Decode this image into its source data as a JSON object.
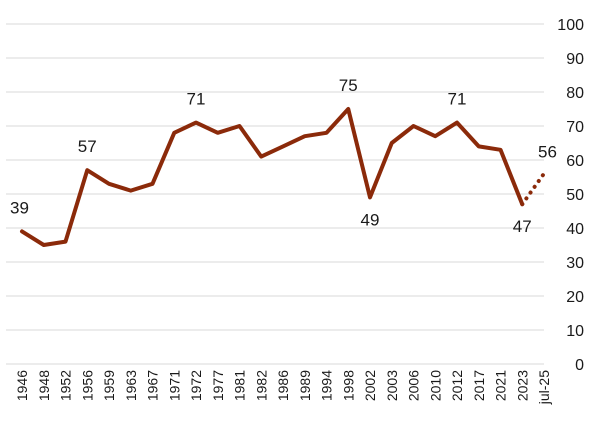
{
  "chart_data": {
    "type": "line",
    "x": [
      "1946",
      "1948",
      "1952",
      "1956",
      "1959",
      "1963",
      "1967",
      "1971",
      "1972",
      "1977",
      "1981",
      "1982",
      "1986",
      "1989",
      "1994",
      "1998",
      "2002",
      "2003",
      "2006",
      "2010",
      "2012",
      "2017",
      "2021",
      "2023",
      "jul-25"
    ],
    "series": [
      {
        "values": [
          39,
          35,
          36,
          57,
          53,
          51,
          53,
          68,
          71,
          68,
          70,
          61,
          64,
          67,
          68,
          75,
          49,
          65,
          70,
          67,
          71,
          64,
          63,
          47,
          56
        ]
      }
    ],
    "projected_from_index": 23,
    "data_labels": [
      {
        "index": 0,
        "text": "39",
        "placement": "above"
      },
      {
        "index": 3,
        "text": "57",
        "placement": "above"
      },
      {
        "index": 8,
        "text": "71",
        "placement": "above"
      },
      {
        "index": 15,
        "text": "75",
        "placement": "above"
      },
      {
        "index": 16,
        "text": "49",
        "placement": "below"
      },
      {
        "index": 20,
        "text": "71",
        "placement": "above"
      },
      {
        "index": 23,
        "text": "47",
        "placement": "below"
      },
      {
        "index": 24,
        "text": "56",
        "placement": "above"
      }
    ],
    "y_ticks": [
      "0",
      "10",
      "20",
      "30",
      "40",
      "50",
      "60",
      "70",
      "80",
      "90",
      "100"
    ],
    "ylim": [
      0,
      100
    ],
    "y_axis_side": "right",
    "grid": true,
    "line_color": "#8b2a0a"
  }
}
